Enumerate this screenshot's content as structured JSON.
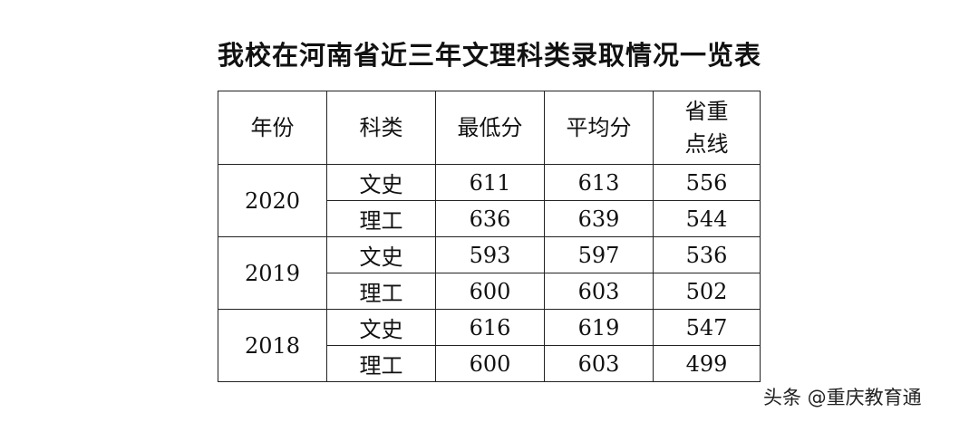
{
  "title": "我校在河南省近三年文理科类录取情况一览表",
  "table": {
    "headers": [
      "年份",
      "科类",
      "最低分",
      "平均分",
      "省重点线"
    ],
    "header_last_lines": [
      "省重",
      "点线"
    ],
    "groups": [
      {
        "year": "2020",
        "rows": [
          {
            "category": "文史",
            "min": "611",
            "avg": "613",
            "line": "556"
          },
          {
            "category": "理工",
            "min": "636",
            "avg": "639",
            "line": "544"
          }
        ]
      },
      {
        "year": "2019",
        "rows": [
          {
            "category": "文史",
            "min": "593",
            "avg": "597",
            "line": "536"
          },
          {
            "category": "理工",
            "min": "600",
            "avg": "603",
            "line": "502"
          }
        ]
      },
      {
        "year": "2018",
        "rows": [
          {
            "category": "文史",
            "min": "616",
            "avg": "619",
            "line": "547"
          },
          {
            "category": "理工",
            "min": "600",
            "avg": "603",
            "line": "499"
          }
        ]
      }
    ]
  },
  "watermark": "头条 @重庆教育通"
}
